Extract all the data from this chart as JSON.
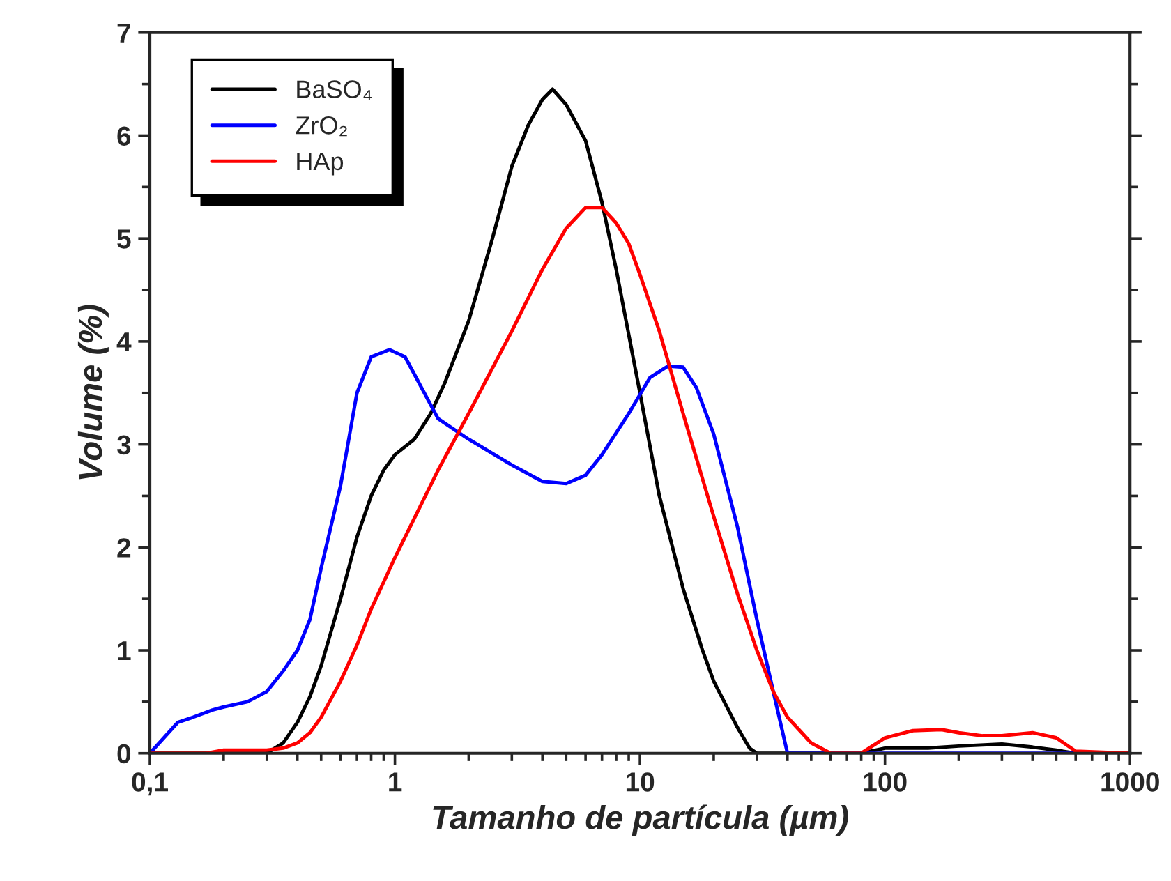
{
  "chart_data": {
    "type": "line",
    "xlabel": "Tamanho de partícula (µm)",
    "ylabel": "Volume (%)",
    "log": "x",
    "xlim": [
      0.1,
      1000
    ],
    "xticks": [
      {
        "value": 0.1,
        "label": "0,1"
      },
      1,
      10,
      100,
      1000
    ],
    "ylim": [
      0,
      7
    ],
    "yticks": [
      0,
      1,
      2,
      3,
      4,
      5,
      6,
      7
    ],
    "grid": false,
    "legend": "top left",
    "marker": "none",
    "line_style": "solid",
    "series": [
      {
        "name": "BaSO₄",
        "color": "#000000",
        "x": [
          0.1,
          0.3,
          0.35,
          0.4,
          0.45,
          0.5,
          0.6,
          0.7,
          0.8,
          0.9,
          1.0,
          1.2,
          1.4,
          1.6,
          2,
          2.5,
          3,
          3.5,
          4,
          4.4,
          5,
          6,
          7,
          8,
          10,
          12,
          15,
          18,
          20,
          25,
          28,
          30,
          80,
          100,
          150,
          200,
          300,
          400,
          500,
          600,
          1000
        ],
        "values": [
          0,
          0,
          0.1,
          0.3,
          0.55,
          0.85,
          1.5,
          2.1,
          2.5,
          2.75,
          2.9,
          3.05,
          3.3,
          3.6,
          4.2,
          5.0,
          5.7,
          6.1,
          6.35,
          6.45,
          6.3,
          5.95,
          5.35,
          4.7,
          3.5,
          2.5,
          1.6,
          1.0,
          0.7,
          0.25,
          0.05,
          0,
          0,
          0.05,
          0.05,
          0.07,
          0.09,
          0.06,
          0.03,
          0,
          0
        ]
      },
      {
        "name": "ZrO₂",
        "color": "#0000ff",
        "x": [
          0.1,
          0.13,
          0.15,
          0.18,
          0.2,
          0.25,
          0.3,
          0.35,
          0.4,
          0.45,
          0.5,
          0.6,
          0.7,
          0.8,
          0.95,
          1.1,
          1.5,
          2,
          3,
          4,
          5,
          6,
          7,
          9,
          11,
          13,
          15,
          17,
          20,
          25,
          30,
          35,
          40,
          1000
        ],
        "values": [
          0,
          0.3,
          0.35,
          0.42,
          0.45,
          0.5,
          0.6,
          0.8,
          1.0,
          1.3,
          1.8,
          2.6,
          3.5,
          3.85,
          3.92,
          3.85,
          3.25,
          3.05,
          2.8,
          2.64,
          2.62,
          2.7,
          2.9,
          3.3,
          3.65,
          3.76,
          3.75,
          3.55,
          3.1,
          2.2,
          1.3,
          0.6,
          0,
          0
        ]
      },
      {
        "name": "HAp",
        "color": "#ff0000",
        "x": [
          0.1,
          0.17,
          0.2,
          0.3,
          0.35,
          0.4,
          0.45,
          0.5,
          0.6,
          0.7,
          0.8,
          1,
          1.5,
          2,
          3,
          4,
          5,
          6,
          7,
          8,
          9,
          10,
          12,
          15,
          20,
          25,
          30,
          35,
          40,
          50,
          60,
          80,
          100,
          130,
          170,
          200,
          250,
          300,
          400,
          500,
          600,
          1000
        ],
        "values": [
          0,
          0,
          0.03,
          0.03,
          0.05,
          0.1,
          0.2,
          0.35,
          0.7,
          1.05,
          1.4,
          1.9,
          2.75,
          3.3,
          4.1,
          4.7,
          5.1,
          5.3,
          5.3,
          5.15,
          4.95,
          4.65,
          4.1,
          3.3,
          2.3,
          1.55,
          1.0,
          0.6,
          0.35,
          0.1,
          0,
          0,
          0.15,
          0.22,
          0.23,
          0.2,
          0.17,
          0.17,
          0.2,
          0.15,
          0.02,
          0
        ]
      }
    ]
  }
}
